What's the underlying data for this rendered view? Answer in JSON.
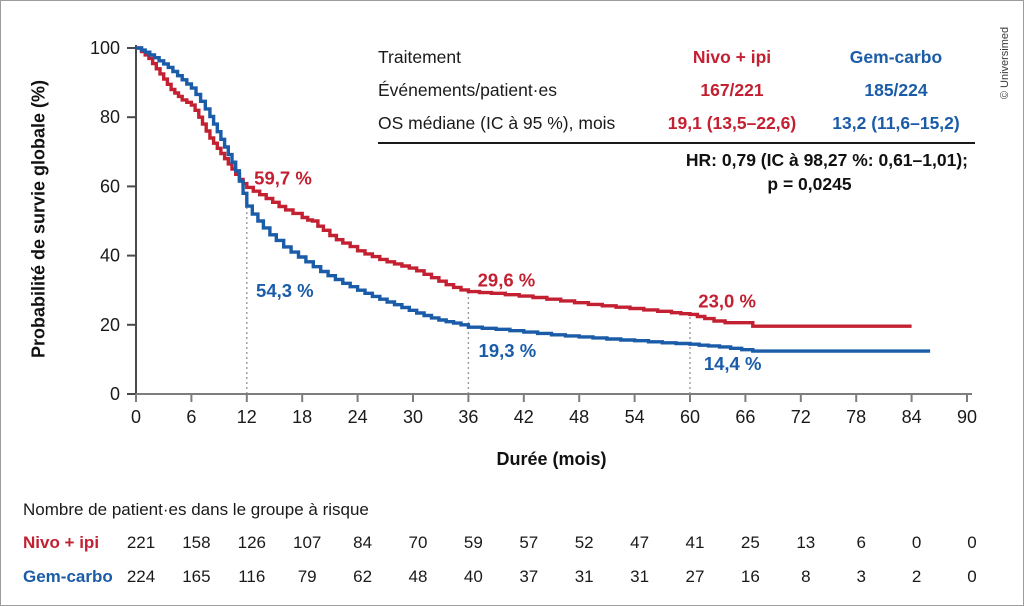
{
  "figure": {
    "copyright": "© Universimed",
    "colors": {
      "red": "#c32032",
      "blue": "#1b5ca8",
      "x_axis": "#7d7d7d",
      "y_axis": "#4a4a4a",
      "dotted": "#9b9b9b",
      "text": "#1a1a1a"
    }
  },
  "legend_table": {
    "rows": [
      {
        "label": "Traitement",
        "nivo": "Nivo + ipi",
        "gem": "Gem-carbo"
      },
      {
        "label": "Événements/patient·es",
        "nivo": "167/221",
        "gem": "185/224"
      },
      {
        "label": "OS médiane (IC à 95 %), mois",
        "nivo": "19,1 (13,5–22,6)",
        "gem": "13,2 (11,6–15,2)"
      }
    ],
    "hr_line1": "HR: 0,79 (IC à 98,27 %: 0,61–1,01);",
    "hr_line2": "p = 0,0245"
  },
  "chart_data": {
    "type": "line",
    "subtype": "kaplan-meier-step",
    "xlabel": "Durée (mois)",
    "ylabel": "Probabilité de survie globale (%)",
    "xlim": [
      0,
      90
    ],
    "ylim": [
      0,
      100
    ],
    "xticks": [
      0,
      6,
      12,
      18,
      24,
      30,
      36,
      42,
      48,
      54,
      60,
      66,
      72,
      78,
      84,
      90
    ],
    "yticks": [
      0,
      20,
      40,
      60,
      80,
      100
    ],
    "grid": false,
    "milestones": [
      {
        "month": 12,
        "top_pct": 59.7
      },
      {
        "month": 36,
        "top_pct": 29.8
      },
      {
        "month": 60,
        "top_pct": 24.5
      }
    ],
    "annotations": [
      {
        "text": "59,7 %",
        "month": 12.8,
        "pct": 60.5,
        "series": "red"
      },
      {
        "text": "54,3 %",
        "month": 13.0,
        "pct": 28.0,
        "series": "blue"
      },
      {
        "text": "29,6 %",
        "month": 37.0,
        "pct": 31.0,
        "series": "red"
      },
      {
        "text": "19,3 %",
        "month": 37.1,
        "pct": 10.7,
        "series": "blue"
      },
      {
        "text": "23,0 %",
        "month": 60.9,
        "pct": 25.0,
        "series": "red"
      },
      {
        "text": "14,4 %",
        "month": 61.5,
        "pct": 7.0,
        "series": "blue"
      }
    ],
    "series": [
      {
        "name": "Nivo + ipi",
        "color_key": "red",
        "points": [
          [
            0,
            100
          ],
          [
            0.6,
            99
          ],
          [
            1,
            98
          ],
          [
            1.4,
            97
          ],
          [
            1.8,
            95.5
          ],
          [
            2.2,
            94
          ],
          [
            2.6,
            92.5
          ],
          [
            3,
            91
          ],
          [
            3.4,
            89.5
          ],
          [
            3.8,
            88
          ],
          [
            4.2,
            87
          ],
          [
            4.6,
            86
          ],
          [
            5,
            85
          ],
          [
            5.5,
            84.3
          ],
          [
            6,
            83.5
          ],
          [
            6.4,
            82
          ],
          [
            6.8,
            80
          ],
          [
            7.2,
            78
          ],
          [
            7.6,
            76
          ],
          [
            8,
            74
          ],
          [
            8.4,
            72.5
          ],
          [
            8.8,
            71
          ],
          [
            9.2,
            69.5
          ],
          [
            9.6,
            68
          ],
          [
            10,
            66.5
          ],
          [
            10.4,
            65
          ],
          [
            10.8,
            63.5
          ],
          [
            11.2,
            62
          ],
          [
            11.6,
            60.8
          ],
          [
            12,
            59.7
          ],
          [
            12.7,
            58.6
          ],
          [
            13.4,
            57.6
          ],
          [
            14.1,
            56.5
          ],
          [
            14.8,
            55.4
          ],
          [
            15.5,
            54.2
          ],
          [
            16.2,
            53.2
          ],
          [
            17,
            52.2
          ],
          [
            18,
            51
          ],
          [
            18.6,
            50.3
          ],
          [
            19.1,
            50
          ],
          [
            19.7,
            48.5
          ],
          [
            20.3,
            47.3
          ],
          [
            21,
            45.8
          ],
          [
            21.7,
            44.6
          ],
          [
            22.4,
            43.6
          ],
          [
            23.2,
            42.6
          ],
          [
            24,
            41.4
          ],
          [
            24.8,
            40.5
          ],
          [
            25.6,
            39.7
          ],
          [
            26.4,
            38.9
          ],
          [
            27.2,
            38.2
          ],
          [
            28,
            37.6
          ],
          [
            28.8,
            37
          ],
          [
            29.6,
            36.4
          ],
          [
            30.4,
            35.6
          ],
          [
            31.2,
            34.6
          ],
          [
            32,
            33.6
          ],
          [
            32.8,
            32.6
          ],
          [
            33.6,
            31.6
          ],
          [
            34.4,
            30.8
          ],
          [
            35.2,
            30.1
          ],
          [
            36,
            29.6
          ],
          [
            37.2,
            29.3
          ],
          [
            38.5,
            29.1
          ],
          [
            40,
            28.7
          ],
          [
            41.5,
            28.3
          ],
          [
            43,
            27.9
          ],
          [
            44.5,
            27.4
          ],
          [
            46,
            26.9
          ],
          [
            47.5,
            26.4
          ],
          [
            49,
            25.9
          ],
          [
            50.5,
            25.5
          ],
          [
            52,
            25.1
          ],
          [
            53.5,
            24.7
          ],
          [
            55,
            24.3
          ],
          [
            56.5,
            23.9
          ],
          [
            58,
            23.5
          ],
          [
            59,
            23.2
          ],
          [
            60,
            23
          ],
          [
            60.8,
            22.4
          ],
          [
            61.6,
            21.8
          ],
          [
            62.6,
            21.1
          ],
          [
            63.8,
            20.6
          ],
          [
            66.8,
            19.6
          ],
          [
            84,
            19.6
          ]
        ]
      },
      {
        "name": "Gem-carbo",
        "color_key": "blue",
        "points": [
          [
            0,
            100
          ],
          [
            0.6,
            99.4
          ],
          [
            1,
            98.8
          ],
          [
            1.5,
            98
          ],
          [
            2,
            97.2
          ],
          [
            2.5,
            96.3
          ],
          [
            3,
            95.4
          ],
          [
            3.5,
            94.4
          ],
          [
            4,
            93.2
          ],
          [
            4.5,
            92
          ],
          [
            5,
            90.8
          ],
          [
            5.5,
            89.6
          ],
          [
            6,
            88.4
          ],
          [
            6.5,
            86.6
          ],
          [
            7,
            84.6
          ],
          [
            7.5,
            82.4
          ],
          [
            8,
            80.2
          ],
          [
            8.4,
            78
          ],
          [
            8.8,
            75.8
          ],
          [
            9.2,
            73.6
          ],
          [
            9.6,
            71.4
          ],
          [
            10,
            69.2
          ],
          [
            10.4,
            67
          ],
          [
            10.8,
            64.5
          ],
          [
            11.2,
            61.5
          ],
          [
            11.6,
            58
          ],
          [
            12,
            54.3
          ],
          [
            12.6,
            52
          ],
          [
            13.2,
            50
          ],
          [
            13.8,
            48
          ],
          [
            14.5,
            46
          ],
          [
            15.2,
            44.4
          ],
          [
            16,
            42.5
          ],
          [
            16.8,
            41
          ],
          [
            17.6,
            39.6
          ],
          [
            18.4,
            38.2
          ],
          [
            19.2,
            36.8
          ],
          [
            20,
            35.4
          ],
          [
            20.8,
            34.2
          ],
          [
            21.6,
            33.1
          ],
          [
            22.4,
            32
          ],
          [
            23.2,
            31
          ],
          [
            24,
            30
          ],
          [
            24.8,
            29.1
          ],
          [
            25.6,
            28.2
          ],
          [
            26.4,
            27.4
          ],
          [
            27.2,
            26.6
          ],
          [
            28,
            25.8
          ],
          [
            28.8,
            25
          ],
          [
            29.6,
            24.2
          ],
          [
            30.4,
            23.4
          ],
          [
            31.2,
            22.7
          ],
          [
            32,
            22
          ],
          [
            32.8,
            21.4
          ],
          [
            33.6,
            20.9
          ],
          [
            34.4,
            20.5
          ],
          [
            35.2,
            20
          ],
          [
            36,
            19.3
          ],
          [
            37.5,
            19
          ],
          [
            39,
            18.7
          ],
          [
            40.5,
            18.3
          ],
          [
            42,
            17.9
          ],
          [
            43.5,
            17.5
          ],
          [
            45,
            17.1
          ],
          [
            46.5,
            16.8
          ],
          [
            48,
            16.5
          ],
          [
            49.5,
            16.2
          ],
          [
            51,
            15.9
          ],
          [
            52.5,
            15.6
          ],
          [
            54,
            15.4
          ],
          [
            55.5,
            15.1
          ],
          [
            57,
            14.8
          ],
          [
            58.5,
            14.6
          ],
          [
            60,
            14.4
          ],
          [
            61,
            14.1
          ],
          [
            62,
            13.9
          ],
          [
            63.2,
            13.6
          ],
          [
            64.4,
            13.2
          ],
          [
            65.6,
            12.8
          ],
          [
            66.8,
            12.4
          ],
          [
            86,
            12.4
          ]
        ]
      }
    ]
  },
  "risk_table": {
    "title": "Nombre de patient·es dans le groupe à risque",
    "months": [
      0,
      6,
      12,
      18,
      24,
      30,
      36,
      42,
      48,
      54,
      60,
      66,
      72,
      78,
      84,
      90
    ],
    "rows": [
      {
        "label": "Nivo + ipi",
        "color_key": "red",
        "values": [
          221,
          158,
          126,
          107,
          84,
          70,
          59,
          57,
          52,
          47,
          41,
          25,
          13,
          6,
          0,
          0
        ]
      },
      {
        "label": "Gem-carbo",
        "color_key": "blue",
        "values": [
          224,
          165,
          116,
          79,
          62,
          48,
          40,
          37,
          31,
          31,
          27,
          16,
          8,
          3,
          2,
          0
        ]
      }
    ]
  }
}
